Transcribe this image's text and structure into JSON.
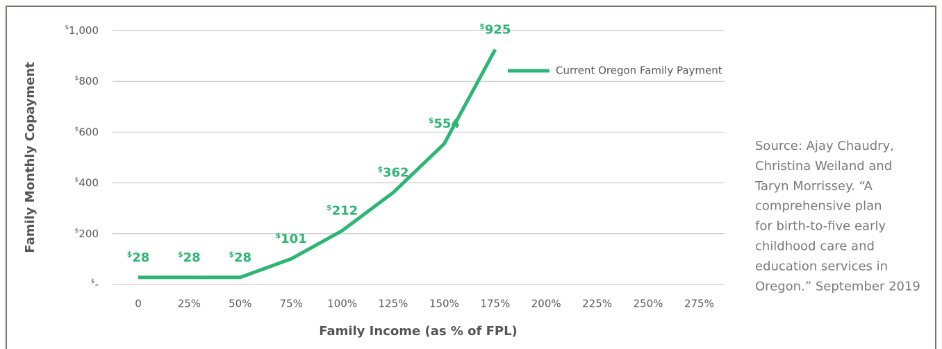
{
  "chart_data": {
    "type": "line",
    "categories": [
      "0",
      "25%",
      "50%",
      "75%",
      "100%",
      "125%",
      "150%",
      "175%",
      "200%",
      "225%",
      "250%",
      "275%"
    ],
    "series": [
      {
        "name": "Current Oregon Family Payment",
        "color": "#2bb673",
        "values": [
          28,
          28,
          28,
          101,
          212,
          362,
          554,
          925,
          null,
          null,
          null,
          null
        ],
        "value_labels": [
          "$28",
          "$28",
          "$28",
          "$101",
          "$212",
          "$362",
          "$554",
          "$925",
          null,
          null,
          null,
          null
        ]
      }
    ],
    "ylim": [
      0,
      1000
    ],
    "yticks": [
      {
        "value": 0,
        "label": "$-"
      },
      {
        "value": 200,
        "label": "$200"
      },
      {
        "value": 400,
        "label": "$400"
      },
      {
        "value": 600,
        "label": "$600"
      },
      {
        "value": 800,
        "label": "$800"
      },
      {
        "value": 1000,
        "label": "$1,000"
      }
    ],
    "grid": true,
    "y_axis_label": "Family Monthly Copayment",
    "x_axis_label": "Family Income (as % of FPL)",
    "legend": "upper right",
    "annotation": [
      "Source: Ajay Chaudry,",
      "Christina Weiland and",
      "Taryn Morrissey. “A",
      "comprehensive plan",
      "for birth-to-five early",
      "childhood care and",
      "education services in",
      "Oregon.” September 2019"
    ]
  }
}
